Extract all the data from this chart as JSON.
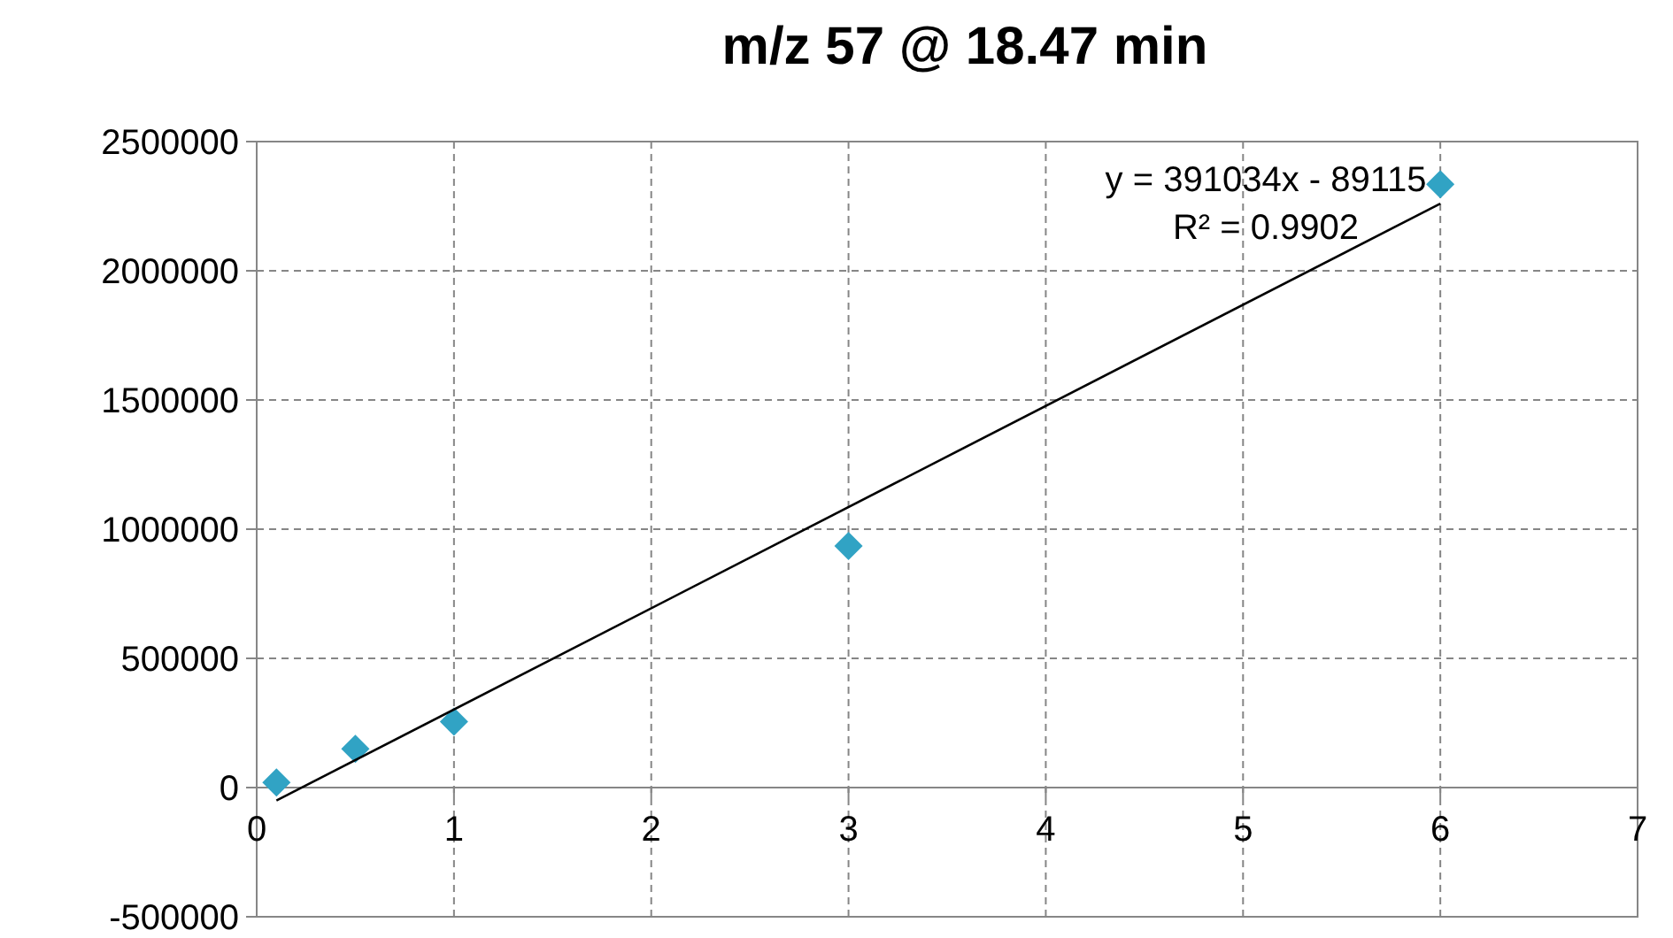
{
  "chart_data": {
    "type": "scatter",
    "title": "m/z 57 @ 18.47 min",
    "series": [
      {
        "color": "#31a3c4",
        "marker": "diamond",
        "x": [
          0.1,
          0.5,
          1,
          3,
          6
        ],
        "values": [
          20000,
          150000,
          255000,
          935000,
          2335000
        ]
      },
      {
        "type": "line",
        "color": "#000000",
        "marker": "none",
        "line_style": "solid",
        "x": [
          0.1,
          6
        ],
        "values": [
          -50000,
          2260000
        ]
      }
    ],
    "xlim": [
      0,
      7
    ],
    "xticks": [
      0,
      1,
      2,
      3,
      4,
      5,
      6,
      7
    ],
    "ylim": [
      -500000,
      2500000
    ],
    "yticks": [
      -500000,
      0,
      500000,
      1000000,
      1500000,
      2000000,
      2500000
    ],
    "grid": true,
    "annotations": [
      "y = 391034x - 89115",
      "R² = 0.9902"
    ]
  }
}
